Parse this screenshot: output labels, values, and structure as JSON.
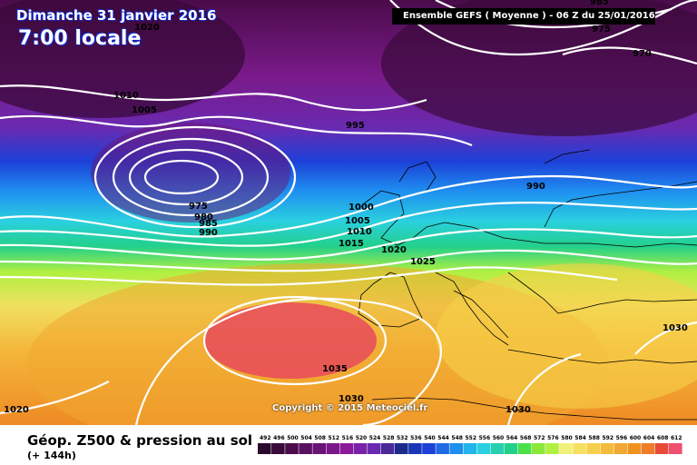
{
  "header": {
    "date": "Dimanche 31 janvier 2016",
    "time": "7:00 locale",
    "run_info": "Ensemble GEFS  ( Moyenne )  -  06 Z du 25/01/2016"
  },
  "footer": {
    "title": "Géop. Z500 & pression au sol",
    "lead_time": "(+ 144h)"
  },
  "copyright": "Copyright © 2015 Meteociel.fr",
  "colors": {
    "background_field": [
      "#3a0a3a",
      "#5a1060",
      "#8a1a9a",
      "#6a2ab0",
      "#1e2a8a",
      "#1c40d8",
      "#1f8ff0",
      "#2ad0e0",
      "#23d08a",
      "#4ae04a",
      "#b0f040",
      "#f0f07a",
      "#f6d04a",
      "#f0a830",
      "#ee7c2a",
      "#e84a3a",
      "#ee5070"
    ],
    "isolines": "#ffffff"
  },
  "isobars": [
    {
      "label": "1020"
    },
    {
      "label": "1010"
    },
    {
      "label": "1005"
    },
    {
      "label": "995"
    },
    {
      "label": "975"
    },
    {
      "label": "980"
    },
    {
      "label": "985"
    },
    {
      "label": "990"
    },
    {
      "label": "1000"
    },
    {
      "label": "1005"
    },
    {
      "label": "1010"
    },
    {
      "label": "1015"
    },
    {
      "label": "1020"
    },
    {
      "label": "1025"
    },
    {
      "label": "990"
    },
    {
      "label": "970"
    },
    {
      "label": "975"
    },
    {
      "label": "985"
    },
    {
      "label": "1030"
    },
    {
      "label": "1035"
    },
    {
      "label": "1030"
    },
    {
      "label": "1030"
    },
    {
      "label": "1020"
    }
  ],
  "legend_scale": {
    "values": [
      "492",
      "496",
      "500",
      "504",
      "508",
      "512",
      "516",
      "520",
      "524",
      "528",
      "532",
      "536",
      "540",
      "544",
      "548",
      "552",
      "556",
      "560",
      "564",
      "568",
      "572",
      "576",
      "580",
      "584",
      "588",
      "592",
      "596",
      "600",
      "604",
      "608",
      "612"
    ],
    "colors": [
      "#2b0a2b",
      "#3a0a3a",
      "#4b0c4b",
      "#5a1060",
      "#6a1475",
      "#7a188a",
      "#8a1a9a",
      "#7a22a8",
      "#6a2ab0",
      "#4a2a98",
      "#1e2a8a",
      "#1a36b8",
      "#1c40d8",
      "#1f6ae4",
      "#1f8ff0",
      "#22b4ea",
      "#2ad0e0",
      "#26d0b0",
      "#23d08a",
      "#4ae04a",
      "#8ae83a",
      "#b0f040",
      "#f0f07a",
      "#f6e060",
      "#f6d04a",
      "#f4bc3c",
      "#f0a830",
      "#ee921e",
      "#ee7c2a",
      "#e84a3a",
      "#ee5070"
    ]
  }
}
